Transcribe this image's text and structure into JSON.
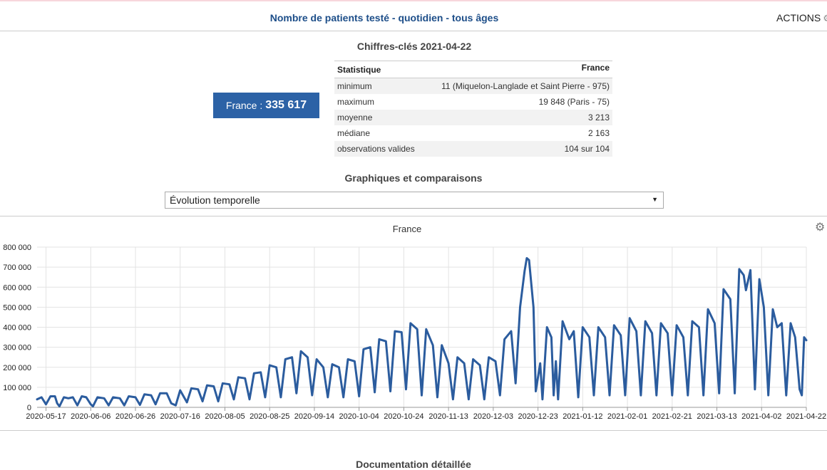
{
  "header": {
    "title": "Nombre de patients testé - quotidien - tous âges",
    "actions_label": "ACTIONS",
    "actions_icon": "gear-icon"
  },
  "key_figures": {
    "title": "Chiffres-clés 2021-04-22",
    "kpi_label": "France :",
    "kpi_value": "335 617",
    "table": {
      "headers": [
        "Statistique",
        "France"
      ],
      "rows": [
        [
          "minimum",
          "11 (Miquelon-Langlade et Saint Pierre - 975)"
        ],
        [
          "maximum",
          "19 848 (Paris - 75)"
        ],
        [
          "moyenne",
          "3 213"
        ],
        [
          "médiane",
          "2 163"
        ],
        [
          "observations valides",
          "104 sur 104"
        ]
      ]
    }
  },
  "graphs": {
    "title": "Graphiques et comparaisons",
    "selected_option": "Évolution temporelle"
  },
  "footer": {
    "doc_title": "Documentation détaillée"
  },
  "colors": {
    "accent": "#2c62a6",
    "line": "#2b5c9e",
    "title": "#1d4e89"
  },
  "chart_data": {
    "type": "line",
    "title": "France",
    "ylim": [
      0,
      800000
    ],
    "yticks": [
      0,
      100000,
      200000,
      300000,
      400000,
      500000,
      600000,
      700000,
      800000
    ],
    "ytick_labels": [
      "0",
      "100 000",
      "200 000",
      "300 000",
      "400 000",
      "500 000",
      "600 000",
      "700 000",
      "800 000"
    ],
    "xlim": [
      "2020-05-13",
      "2021-04-22"
    ],
    "xtick_labels": [
      "2020-05-17",
      "2020-06-06",
      "2020-06-26",
      "2020-07-16",
      "2020-08-05",
      "2020-08-25",
      "2020-09-14",
      "2020-10-04",
      "2020-10-24",
      "2020-11-13",
      "2020-12-03",
      "2020-12-23",
      "2021-01-12",
      "2021-02-01",
      "2021-02-21",
      "2021-03-13",
      "2021-04-02",
      "2021-04-22"
    ],
    "grid": true,
    "legend": "none",
    "series": [
      {
        "points": [
          [
            "2020-05-13",
            40000
          ],
          [
            "2020-05-15",
            50000
          ],
          [
            "2020-05-17",
            15000
          ],
          [
            "2020-05-19",
            55000
          ],
          [
            "2020-05-21",
            55000
          ],
          [
            "2020-05-22",
            20000
          ],
          [
            "2020-05-23",
            5000
          ],
          [
            "2020-05-25",
            50000
          ],
          [
            "2020-05-27",
            45000
          ],
          [
            "2020-05-29",
            50000
          ],
          [
            "2020-05-31",
            10000
          ],
          [
            "2020-06-02",
            55000
          ],
          [
            "2020-06-04",
            50000
          ],
          [
            "2020-06-06",
            15000
          ],
          [
            "2020-06-07",
            5000
          ],
          [
            "2020-06-09",
            50000
          ],
          [
            "2020-06-12",
            45000
          ],
          [
            "2020-06-14",
            10000
          ],
          [
            "2020-06-16",
            50000
          ],
          [
            "2020-06-19",
            45000
          ],
          [
            "2020-06-21",
            10000
          ],
          [
            "2020-06-23",
            55000
          ],
          [
            "2020-06-26",
            50000
          ],
          [
            "2020-06-28",
            12000
          ],
          [
            "2020-06-30",
            65000
          ],
          [
            "2020-07-03",
            60000
          ],
          [
            "2020-07-05",
            15000
          ],
          [
            "2020-07-07",
            70000
          ],
          [
            "2020-07-10",
            70000
          ],
          [
            "2020-07-12",
            20000
          ],
          [
            "2020-07-14",
            10000
          ],
          [
            "2020-07-16",
            85000
          ],
          [
            "2020-07-19",
            25000
          ],
          [
            "2020-07-21",
            95000
          ],
          [
            "2020-07-24",
            90000
          ],
          [
            "2020-07-26",
            30000
          ],
          [
            "2020-07-28",
            110000
          ],
          [
            "2020-07-31",
            105000
          ],
          [
            "2020-08-02",
            30000
          ],
          [
            "2020-08-04",
            120000
          ],
          [
            "2020-08-07",
            115000
          ],
          [
            "2020-08-09",
            40000
          ],
          [
            "2020-08-11",
            150000
          ],
          [
            "2020-08-14",
            145000
          ],
          [
            "2020-08-16",
            40000
          ],
          [
            "2020-08-18",
            170000
          ],
          [
            "2020-08-21",
            175000
          ],
          [
            "2020-08-23",
            50000
          ],
          [
            "2020-08-25",
            210000
          ],
          [
            "2020-08-28",
            200000
          ],
          [
            "2020-08-30",
            50000
          ],
          [
            "2020-09-01",
            240000
          ],
          [
            "2020-09-04",
            250000
          ],
          [
            "2020-09-06",
            70000
          ],
          [
            "2020-09-08",
            280000
          ],
          [
            "2020-09-11",
            250000
          ],
          [
            "2020-09-13",
            60000
          ],
          [
            "2020-09-15",
            240000
          ],
          [
            "2020-09-18",
            200000
          ],
          [
            "2020-09-20",
            50000
          ],
          [
            "2020-09-22",
            215000
          ],
          [
            "2020-09-25",
            200000
          ],
          [
            "2020-09-27",
            50000
          ],
          [
            "2020-09-29",
            240000
          ],
          [
            "2020-10-02",
            230000
          ],
          [
            "2020-10-04",
            55000
          ],
          [
            "2020-10-06",
            290000
          ],
          [
            "2020-10-09",
            300000
          ],
          [
            "2020-10-11",
            75000
          ],
          [
            "2020-10-13",
            340000
          ],
          [
            "2020-10-16",
            330000
          ],
          [
            "2020-10-18",
            80000
          ],
          [
            "2020-10-20",
            380000
          ],
          [
            "2020-10-23",
            375000
          ],
          [
            "2020-10-25",
            90000
          ],
          [
            "2020-10-27",
            420000
          ],
          [
            "2020-10-30",
            390000
          ],
          [
            "2020-11-01",
            60000
          ],
          [
            "2020-11-03",
            390000
          ],
          [
            "2020-11-06",
            310000
          ],
          [
            "2020-11-08",
            50000
          ],
          [
            "2020-11-10",
            310000
          ],
          [
            "2020-11-13",
            220000
          ],
          [
            "2020-11-15",
            40000
          ],
          [
            "2020-11-17",
            250000
          ],
          [
            "2020-11-20",
            220000
          ],
          [
            "2020-11-22",
            40000
          ],
          [
            "2020-11-24",
            240000
          ],
          [
            "2020-11-27",
            210000
          ],
          [
            "2020-11-29",
            40000
          ],
          [
            "2020-12-01",
            250000
          ],
          [
            "2020-12-04",
            230000
          ],
          [
            "2020-12-06",
            60000
          ],
          [
            "2020-12-08",
            340000
          ],
          [
            "2020-12-11",
            380000
          ],
          [
            "2020-12-13",
            120000
          ],
          [
            "2020-12-15",
            500000
          ],
          [
            "2020-12-17",
            680000
          ],
          [
            "2020-12-18",
            745000
          ],
          [
            "2020-12-19",
            735000
          ],
          [
            "2020-12-21",
            500000
          ],
          [
            "2020-12-22",
            80000
          ],
          [
            "2020-12-24",
            220000
          ],
          [
            "2020-12-25",
            40000
          ],
          [
            "2020-12-27",
            400000
          ],
          [
            "2020-12-29",
            350000
          ],
          [
            "2020-12-30",
            60000
          ],
          [
            "2020-12-31",
            230000
          ],
          [
            "2021-01-01",
            40000
          ],
          [
            "2021-01-03",
            430000
          ],
          [
            "2021-01-06",
            340000
          ],
          [
            "2021-01-08",
            380000
          ],
          [
            "2021-01-10",
            50000
          ],
          [
            "2021-01-12",
            400000
          ],
          [
            "2021-01-15",
            350000
          ],
          [
            "2021-01-17",
            60000
          ],
          [
            "2021-01-19",
            400000
          ],
          [
            "2021-01-22",
            350000
          ],
          [
            "2021-01-24",
            60000
          ],
          [
            "2021-01-26",
            410000
          ],
          [
            "2021-01-29",
            360000
          ],
          [
            "2021-01-31",
            60000
          ],
          [
            "2021-02-02",
            445000
          ],
          [
            "2021-02-05",
            380000
          ],
          [
            "2021-02-07",
            60000
          ],
          [
            "2021-02-09",
            430000
          ],
          [
            "2021-02-12",
            370000
          ],
          [
            "2021-02-14",
            60000
          ],
          [
            "2021-02-16",
            420000
          ],
          [
            "2021-02-19",
            370000
          ],
          [
            "2021-02-21",
            60000
          ],
          [
            "2021-02-23",
            410000
          ],
          [
            "2021-02-26",
            350000
          ],
          [
            "2021-02-28",
            60000
          ],
          [
            "2021-03-02",
            430000
          ],
          [
            "2021-03-05",
            400000
          ],
          [
            "2021-03-07",
            60000
          ],
          [
            "2021-03-09",
            490000
          ],
          [
            "2021-03-12",
            420000
          ],
          [
            "2021-03-14",
            70000
          ],
          [
            "2021-03-16",
            590000
          ],
          [
            "2021-03-19",
            540000
          ],
          [
            "2021-03-21",
            70000
          ],
          [
            "2021-03-23",
            690000
          ],
          [
            "2021-03-25",
            660000
          ],
          [
            "2021-03-26",
            585000
          ],
          [
            "2021-03-28",
            685000
          ],
          [
            "2021-03-30",
            90000
          ],
          [
            "2021-04-01",
            640000
          ],
          [
            "2021-04-03",
            500000
          ],
          [
            "2021-04-05",
            60000
          ],
          [
            "2021-04-07",
            490000
          ],
          [
            "2021-04-09",
            400000
          ],
          [
            "2021-04-11",
            420000
          ],
          [
            "2021-04-13",
            60000
          ],
          [
            "2021-04-15",
            420000
          ],
          [
            "2021-04-17",
            350000
          ],
          [
            "2021-04-19",
            90000
          ],
          [
            "2021-04-20",
            60000
          ],
          [
            "2021-04-21",
            350000
          ],
          [
            "2021-04-22",
            335000
          ]
        ]
      }
    ]
  }
}
